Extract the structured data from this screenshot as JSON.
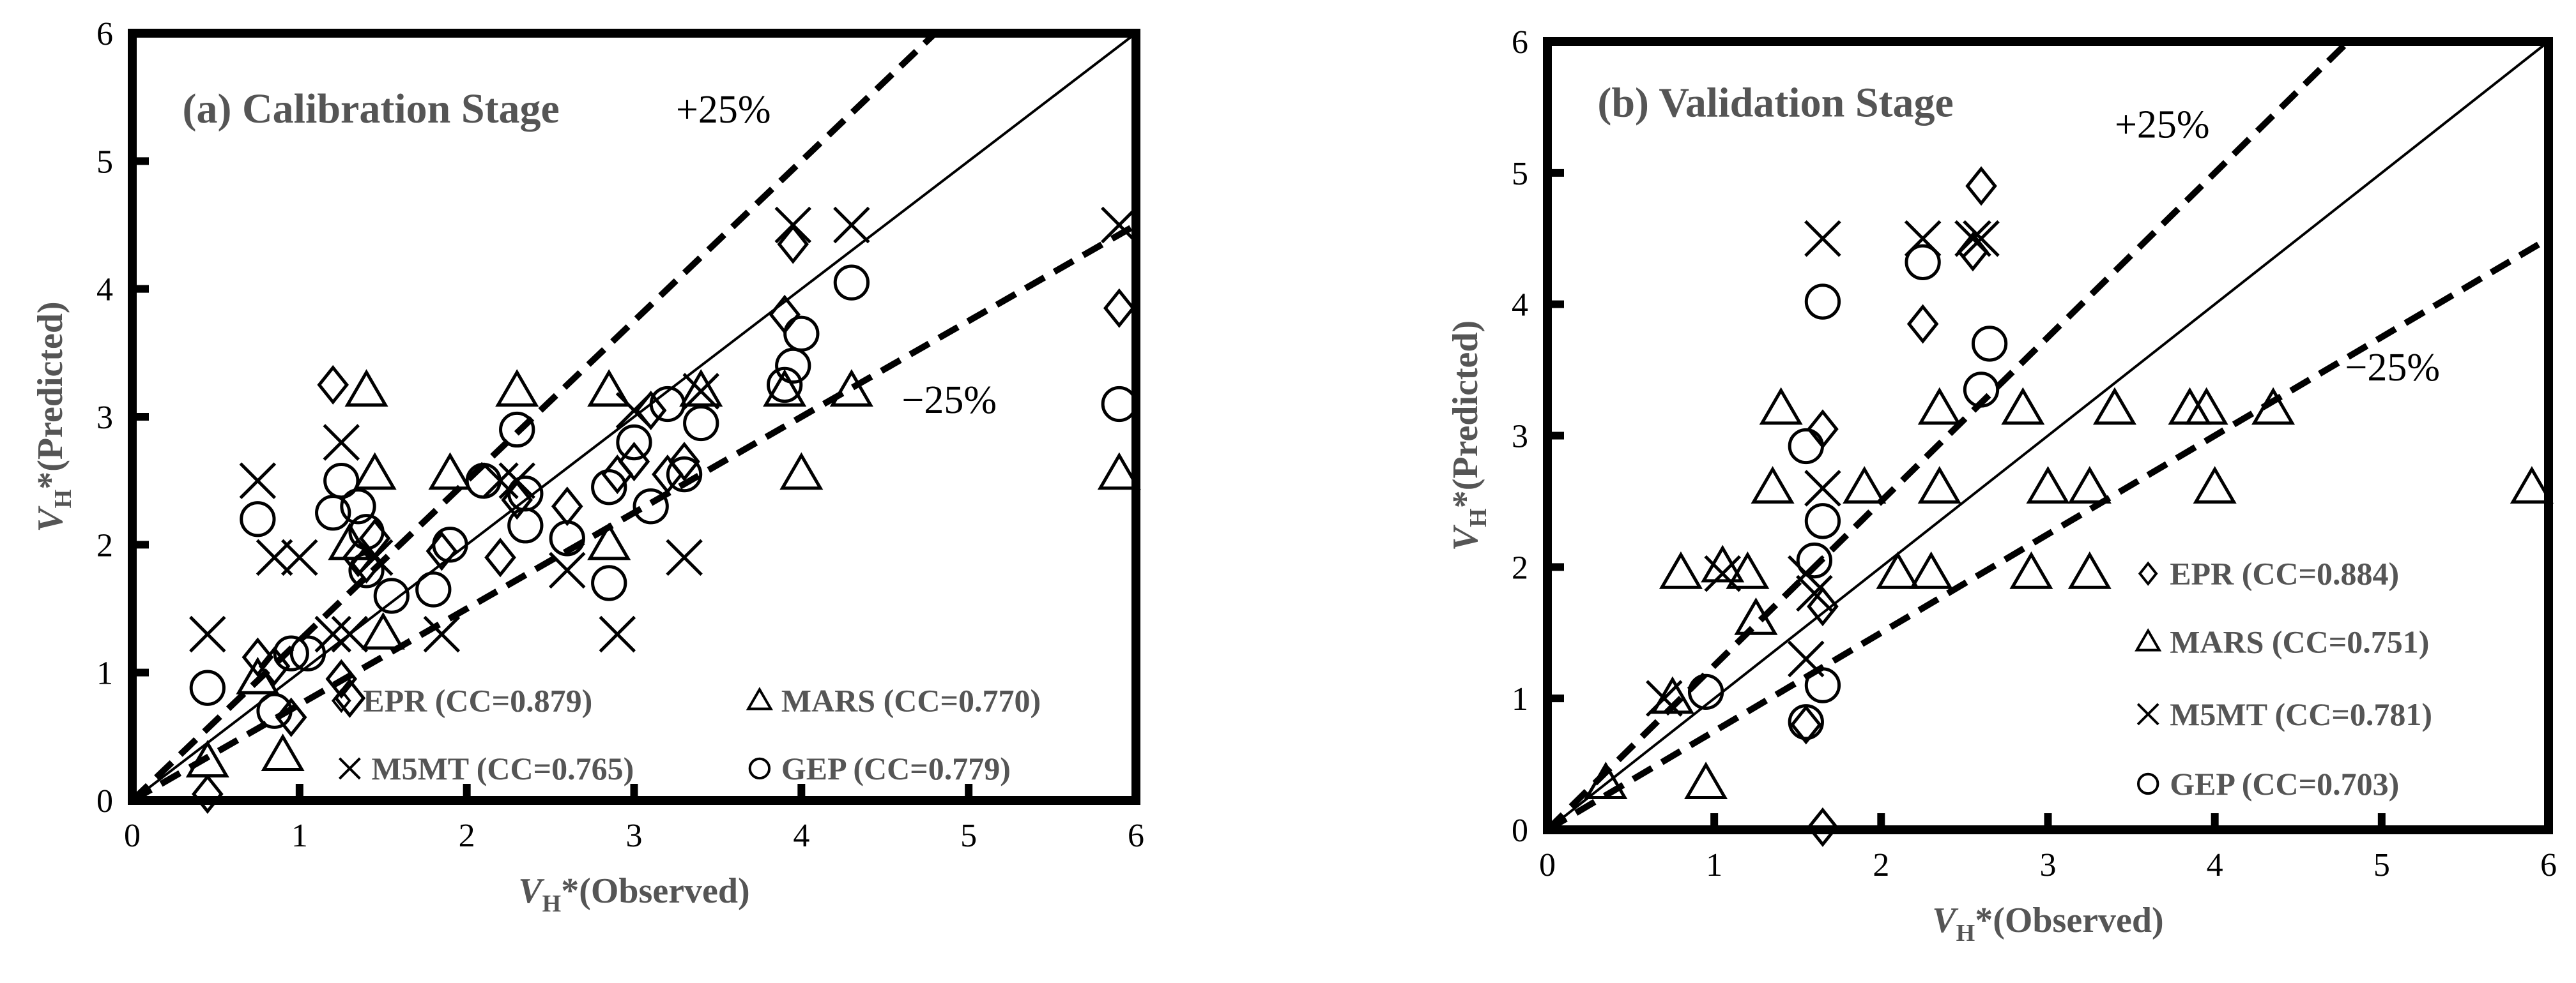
{
  "chart_data": [
    {
      "type": "scatter",
      "title": "(a) Calibration Stage",
      "xlabel": [
        "V",
        "H",
        "*(Observed)"
      ],
      "ylabel": [
        "V",
        "H",
        "*(Predicted)"
      ],
      "xlim": [
        0,
        6
      ],
      "ylim": [
        0,
        6
      ],
      "xticks": [
        0,
        1,
        2,
        3,
        4,
        5,
        6
      ],
      "yticks": [
        0,
        1,
        2,
        3,
        4,
        5,
        6
      ],
      "reference_lines": [
        {
          "slope": 1,
          "dashed": false
        },
        {
          "slope": 1.25,
          "dashed": true,
          "label": "+25%"
        },
        {
          "slope": 0.75,
          "dashed": true,
          "label": "−25%"
        }
      ],
      "series": [
        {
          "name": "EPR (CC=0.879)",
          "marker": "diamond",
          "color": "#000000",
          "x": [
            0.45,
            0.75,
            0.85,
            0.95,
            1.2,
            1.25,
            1.3,
            1.35,
            1.4,
            1.45,
            1.85,
            2.2,
            2.3,
            2.6,
            2.9,
            3.0,
            3.2,
            3.3,
            3.9,
            3.95,
            5.9,
            3.1
          ],
          "y": [
            0.05,
            1.12,
            1.05,
            0.65,
            3.25,
            0.95,
            0.8,
            1.9,
            1.85,
            2.05,
            1.95,
            1.9,
            2.35,
            2.3,
            2.55,
            2.65,
            2.55,
            2.65,
            3.8,
            4.35,
            3.85,
            3.05
          ]
        },
        {
          "name": "MARS (CC=0.770)",
          "marker": "triangle",
          "color": "#000000",
          "x": [
            0.45,
            0.75,
            0.9,
            1.4,
            1.45,
            1.9,
            2.3,
            2.85,
            2.85,
            3.4,
            3.9,
            4.0,
            4.3,
            5.9,
            1.5,
            1.3
          ],
          "y": [
            0.3,
            0.95,
            0.35,
            3.2,
            2.55,
            2.55,
            3.2,
            3.2,
            2.0,
            3.2,
            3.2,
            2.55,
            3.2,
            2.55,
            1.3,
            2.0
          ]
        },
        {
          "name": "M5MT (CC=0.765)",
          "marker": "x",
          "color": "#000000",
          "x": [
            0.45,
            0.75,
            0.85,
            1.0,
            1.25,
            1.3,
            1.45,
            1.85,
            2.3,
            2.6,
            2.9,
            3.0,
            3.3,
            3.4,
            3.95,
            4.3,
            5.9,
            2.2,
            1.2
          ],
          "y": [
            1.3,
            2.5,
            1.9,
            1.9,
            2.8,
            1.3,
            1.9,
            1.3,
            2.5,
            1.8,
            1.3,
            3.05,
            1.9,
            3.2,
            4.5,
            4.5,
            4.5,
            2.5,
            1.3
          ]
        },
        {
          "name": "GEP (CC=0.779)",
          "marker": "circle",
          "color": "#000000",
          "x": [
            0.45,
            0.75,
            0.85,
            0.95,
            1.05,
            1.2,
            1.25,
            1.35,
            1.4,
            1.4,
            1.55,
            1.8,
            1.9,
            2.1,
            2.3,
            2.35,
            2.35,
            2.6,
            2.85,
            2.85,
            3.0,
            3.1,
            3.2,
            3.3,
            3.4,
            3.9,
            3.95,
            4.0,
            4.3,
            5.9
          ],
          "y": [
            0.88,
            2.2,
            0.7,
            1.15,
            1.15,
            2.25,
            2.5,
            2.3,
            2.1,
            1.8,
            1.6,
            1.65,
            2.0,
            2.5,
            2.9,
            2.4,
            2.15,
            2.05,
            1.7,
            2.45,
            2.8,
            2.3,
            3.1,
            2.55,
            2.95,
            3.25,
            3.4,
            3.65,
            4.05,
            3.1
          ]
        }
      ]
    },
    {
      "type": "scatter",
      "title": "(b) Validation Stage",
      "xlabel": [
        "V",
        "H",
        "*(Observed)"
      ],
      "ylabel": [
        "V",
        "H",
        "*(Predicted)"
      ],
      "xlim": [
        0,
        6
      ],
      "ylim": [
        0,
        6
      ],
      "xticks": [
        0,
        1,
        2,
        3,
        4,
        5,
        6
      ],
      "yticks": [
        0,
        1,
        2,
        3,
        4,
        5,
        6
      ],
      "reference_lines": [
        {
          "slope": 1,
          "dashed": false
        },
        {
          "slope": 1.25,
          "dashed": true,
          "label": "+25%"
        },
        {
          "slope": 0.75,
          "dashed": true,
          "label": "−25%"
        }
      ],
      "series": [
        {
          "name": "EPR (CC=0.884)",
          "marker": "diamond",
          "color": "#000000",
          "x": [
            1.65,
            1.65,
            1.65,
            2.25,
            2.55,
            2.6,
            1.55
          ],
          "y": [
            0.02,
            3.05,
            1.7,
            3.85,
            4.4,
            4.9,
            0.8
          ]
        },
        {
          "name": "MARS (CC=0.751)",
          "marker": "triangle",
          "color": "#000000",
          "x": [
            0.35,
            0.75,
            0.8,
            0.95,
            1.05,
            1.2,
            1.25,
            1.35,
            1.4,
            1.9,
            2.1,
            2.3,
            2.35,
            2.35,
            2.85,
            2.9,
            3.0,
            3.25,
            3.25,
            3.4,
            3.85,
            3.95,
            4.0,
            4.35,
            5.9
          ],
          "y": [
            0.35,
            1.0,
            1.95,
            0.35,
            2.0,
            1.95,
            1.6,
            2.6,
            3.2,
            2.6,
            1.95,
            1.95,
            3.2,
            2.6,
            3.2,
            1.95,
            2.6,
            2.6,
            1.95,
            3.2,
            3.2,
            3.2,
            2.6,
            3.2,
            2.6
          ]
        },
        {
          "name": "M5MT (CC=0.781)",
          "marker": "x",
          "color": "#000000",
          "x": [
            0.7,
            1.05,
            1.55,
            1.55,
            1.65,
            1.65,
            2.25,
            2.55,
            2.6,
            1.6
          ],
          "y": [
            1.0,
            1.95,
            1.95,
            1.3,
            4.5,
            2.6,
            4.5,
            4.5,
            4.5,
            1.8
          ]
        },
        {
          "name": "GEP (CC=0.703)",
          "marker": "circle",
          "color": "#000000",
          "x": [
            0.95,
            1.55,
            1.55,
            1.6,
            1.65,
            1.65,
            1.65,
            2.25,
            2.6,
            2.65
          ],
          "y": [
            1.05,
            0.82,
            2.92,
            2.05,
            4.02,
            2.35,
            1.1,
            4.32,
            3.35,
            3.7
          ]
        }
      ]
    }
  ]
}
